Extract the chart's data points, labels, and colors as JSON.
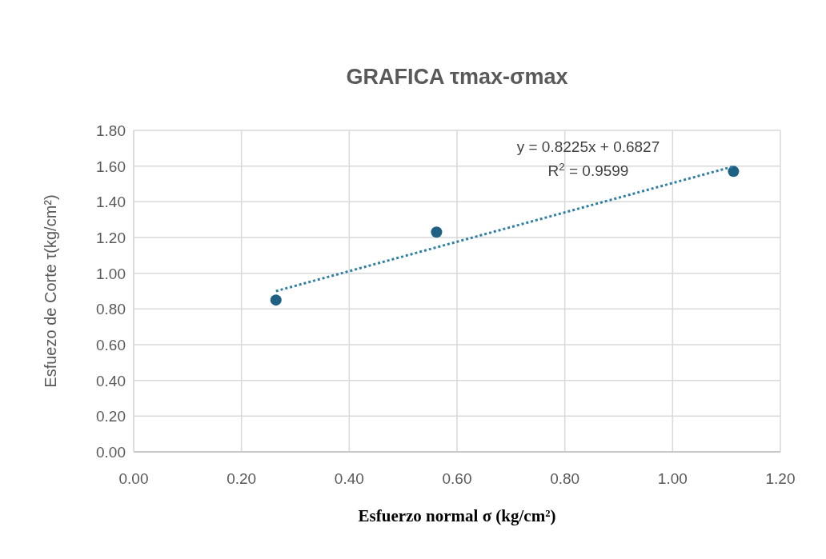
{
  "chart_data": {
    "type": "scatter",
    "title": "GRAFICA τmax-σmax",
    "xlabel": "Esfuerzo normal σ (kg/cm²)",
    "ylabel": "Esfuezo de Corte τ(kg/cm²)",
    "x": [
      0.264,
      0.562,
      1.113
    ],
    "series": [
      {
        "color": "#1f6184",
        "values": [
          0.85,
          1.23,
          1.57
        ],
        "marker": "circle"
      },
      {
        "type": "line",
        "color": "#2f7fa6",
        "x": [
          0.264,
          1.113
        ],
        "values": [
          0.9,
          1.598
        ],
        "line_style": "dotted",
        "marker": "none"
      }
    ],
    "annotations": [
      "y = 0.8225x + 0.6827",
      "R$^{2}$ = 0.9599"
    ],
    "xlim": [
      0,
      1.2
    ],
    "xticks": [
      {
        "value": 0,
        "label": "0.00"
      },
      {
        "value": 0.2,
        "label": "0.20"
      },
      {
        "value": 0.4,
        "label": "0.40"
      },
      {
        "value": 0.6,
        "label": "0.60"
      },
      {
        "value": 0.8,
        "label": "0.80"
      },
      {
        "value": 1,
        "label": "1.00"
      },
      {
        "value": 1.2,
        "label": "1.20"
      }
    ],
    "ylim": [
      0,
      1.8
    ],
    "yticks": [
      {
        "value": 0,
        "label": "0.00"
      },
      {
        "value": 0.2,
        "label": "0.20"
      },
      {
        "value": 0.4,
        "label": "0.40"
      },
      {
        "value": 0.6,
        "label": "0.60"
      },
      {
        "value": 0.8,
        "label": "0.80"
      },
      {
        "value": 1,
        "label": "1.00"
      },
      {
        "value": 1.2,
        "label": "1.20"
      },
      {
        "value": 1.4,
        "label": "1.40"
      },
      {
        "value": 1.6,
        "label": "1.60"
      },
      {
        "value": 1.8,
        "label": "1.80"
      }
    ],
    "grid": true
  }
}
